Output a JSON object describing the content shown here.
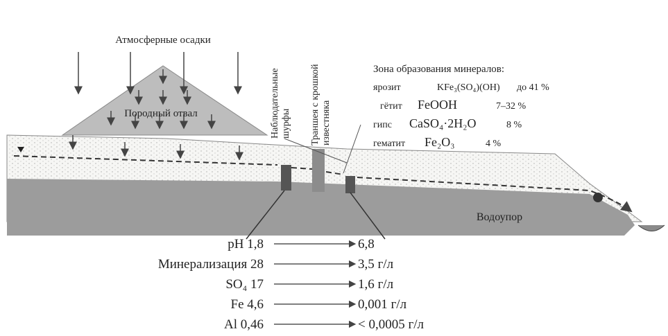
{
  "precipitation": "Атмосферные осадки",
  "dump": "Породный отвал",
  "pits_label": [
    "Наблюдательные",
    "шурфы"
  ],
  "trench_label": [
    "Траншея с крошкой",
    "известняка"
  ],
  "aquitard": "Водоупор",
  "minerals": {
    "title": "Зона образования минералов:",
    "items": [
      {
        "name": "ярозит",
        "formula": "KFe₃(SO₄)(OH)",
        "share": "до 41 %"
      },
      {
        "name": "гётит",
        "formula": "FeOOH",
        "share": "7–32 %"
      },
      {
        "name": "гипс",
        "formula": "CaSO₄·2H₂O",
        "share": "8 %"
      },
      {
        "name": "гематит",
        "formula": "Fe₂O₃",
        "share": "4 %"
      }
    ]
  },
  "changes": [
    {
      "before": "pH 1,8",
      "after": "6,8"
    },
    {
      "before": "Минерализация 28",
      "after": "3,5 г/л"
    },
    {
      "before": "SO₄ 17",
      "after": "1,6 г/л"
    },
    {
      "before": "Fe 4,6",
      "after": "0,001 г/л"
    },
    {
      "before": "Al 0,46",
      "after": "< 0,0005 г/л"
    }
  ]
}
